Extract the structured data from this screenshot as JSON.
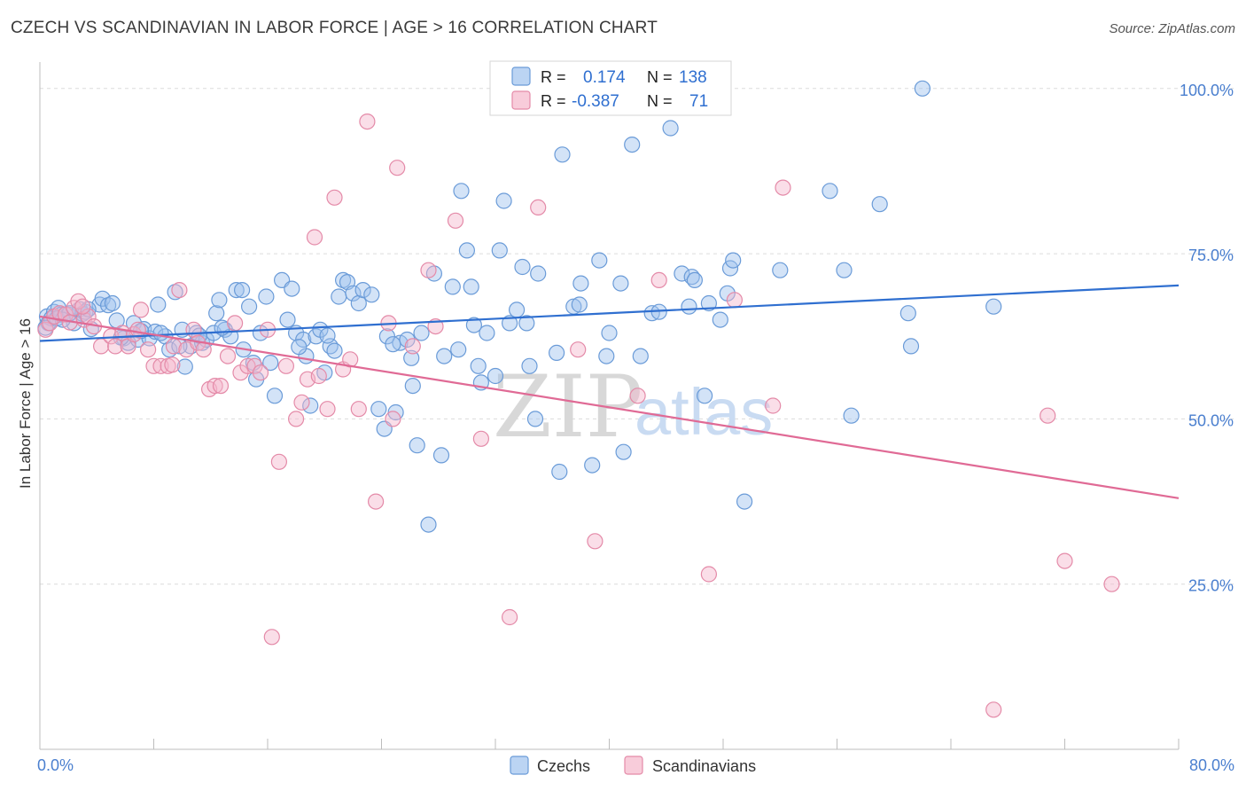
{
  "title": "CZECH VS SCANDINAVIAN IN LABOR FORCE | AGE > 16 CORRELATION CHART",
  "source": "Source: ZipAtlas.com",
  "watermark": {
    "zip": "ZIP",
    "atlas": "atlas"
  },
  "chart_data": {
    "type": "scatter",
    "ylabel": "In Labor Force | Age > 16",
    "xlim": [
      0,
      80
    ],
    "ylim": [
      0,
      104
    ],
    "y_ticks": [
      {
        "value": 25,
        "label": "25.0%"
      },
      {
        "value": 50,
        "label": "50.0%"
      },
      {
        "value": 75,
        "label": "75.0%"
      },
      {
        "value": 100,
        "label": "100.0%"
      }
    ],
    "x_tick_labels": [
      {
        "value": 0,
        "label": "0.0%"
      },
      {
        "value": 80,
        "label": "80.0%"
      }
    ],
    "x_minor_ticks": [
      0,
      8,
      16,
      24,
      32,
      40,
      48,
      56,
      64,
      72,
      80
    ],
    "grid": "horizontal dashed",
    "legend_position": "bottom-center",
    "stats": [
      {
        "r_label": "R =",
        "r": "0.174",
        "n_label": "N =",
        "n": "138"
      },
      {
        "r_label": "R =",
        "r": "-0.387",
        "n_label": "N =",
        "n": "71"
      }
    ],
    "series": [
      {
        "name": "Czechs",
        "color": "#9ec2ee",
        "stroke": "#6a9bd8",
        "trend_color": "#2f6fd0",
        "trend": [
          [
            0,
            61.8
          ],
          [
            80,
            70.2
          ]
        ],
        "points": [
          [
            0.5,
            65.5
          ],
          [
            0.6,
            64.5
          ],
          [
            0.8,
            65.2
          ],
          [
            1.0,
            66.2
          ],
          [
            1.3,
            66.8
          ],
          [
            1.5,
            65.8
          ],
          [
            2.0,
            65.8
          ],
          [
            2.4,
            64.5
          ],
          [
            2.8,
            66.6
          ],
          [
            3.0,
            65.9
          ],
          [
            3.2,
            66.2
          ],
          [
            3.6,
            63.6
          ],
          [
            4.2,
            67.3
          ],
          [
            4.4,
            68.2
          ],
          [
            4.8,
            67.2
          ],
          [
            5.1,
            67.5
          ],
          [
            5.4,
            64.9
          ],
          [
            5.9,
            62.2
          ],
          [
            6.2,
            61.5
          ],
          [
            6.6,
            64.5
          ],
          [
            6.9,
            62.0
          ],
          [
            7.3,
            63.6
          ],
          [
            7.7,
            62.2
          ],
          [
            8.1,
            63.2
          ],
          [
            8.3,
            67.3
          ],
          [
            8.8,
            62.5
          ],
          [
            9.1,
            60.5
          ],
          [
            9.5,
            69.2
          ],
          [
            10.0,
            63.5
          ],
          [
            10.2,
            57.9
          ],
          [
            10.6,
            61.0
          ],
          [
            11.0,
            63.0
          ],
          [
            11.4,
            61.5
          ],
          [
            11.7,
            62.0
          ],
          [
            12.2,
            63.0
          ],
          [
            12.4,
            66.0
          ],
          [
            12.6,
            68.0
          ],
          [
            13.0,
            63.5
          ],
          [
            13.4,
            62.5
          ],
          [
            13.8,
            69.5
          ],
          [
            14.2,
            69.5
          ],
          [
            14.3,
            60.5
          ],
          [
            14.7,
            67.0
          ],
          [
            15.2,
            56.0
          ],
          [
            15.5,
            63.0
          ],
          [
            15.9,
            68.5
          ],
          [
            16.2,
            58.5
          ],
          [
            16.5,
            53.5
          ],
          [
            17.0,
            71.0
          ],
          [
            17.4,
            65.0
          ],
          [
            17.7,
            69.7
          ],
          [
            18.0,
            63.0
          ],
          [
            18.5,
            62.0
          ],
          [
            18.7,
            59.5
          ],
          [
            19.0,
            52.0
          ],
          [
            19.4,
            62.5
          ],
          [
            19.7,
            63.5
          ],
          [
            20.0,
            57.0
          ],
          [
            20.4,
            61.0
          ],
          [
            20.7,
            60.3
          ],
          [
            21.0,
            68.5
          ],
          [
            21.3,
            71.0
          ],
          [
            21.6,
            70.7
          ],
          [
            22.0,
            69.0
          ],
          [
            22.4,
            67.5
          ],
          [
            22.7,
            69.5
          ],
          [
            23.3,
            68.8
          ],
          [
            23.8,
            51.5
          ],
          [
            24.2,
            48.5
          ],
          [
            24.4,
            62.5
          ],
          [
            25.0,
            51.0
          ],
          [
            25.3,
            61.5
          ],
          [
            25.8,
            62.0
          ],
          [
            26.2,
            55.0
          ],
          [
            26.5,
            46.0
          ],
          [
            26.8,
            63.0
          ],
          [
            27.3,
            34.0
          ],
          [
            27.7,
            72.0
          ],
          [
            28.2,
            44.5
          ],
          [
            28.4,
            59.5
          ],
          [
            29.0,
            70.0
          ],
          [
            29.4,
            60.5
          ],
          [
            29.6,
            84.5
          ],
          [
            30.0,
            75.5
          ],
          [
            30.3,
            70.0
          ],
          [
            30.8,
            58.0
          ],
          [
            31.0,
            55.5
          ],
          [
            31.4,
            63.0
          ],
          [
            32.0,
            56.5
          ],
          [
            32.3,
            75.5
          ],
          [
            32.6,
            83.0
          ],
          [
            33.0,
            64.5
          ],
          [
            33.5,
            66.5
          ],
          [
            33.9,
            73.0
          ],
          [
            34.2,
            64.5
          ],
          [
            34.4,
            58.0
          ],
          [
            34.8,
            50.0
          ],
          [
            35.0,
            72.0
          ],
          [
            36.3,
            60.0
          ],
          [
            36.5,
            42.0
          ],
          [
            36.7,
            90.0
          ],
          [
            37.5,
            67.0
          ],
          [
            38.0,
            70.5
          ],
          [
            38.8,
            43.0
          ],
          [
            39.3,
            74.0
          ],
          [
            39.8,
            59.5
          ],
          [
            40.0,
            63.0
          ],
          [
            40.8,
            70.5
          ],
          [
            41.0,
            45.0
          ],
          [
            41.6,
            91.5
          ],
          [
            42.2,
            59.5
          ],
          [
            43.0,
            66.0
          ],
          [
            44.3,
            94.0
          ],
          [
            45.1,
            72.0
          ],
          [
            45.6,
            67.0
          ],
          [
            45.8,
            71.5
          ],
          [
            46.0,
            71.0
          ],
          [
            46.7,
            53.5
          ],
          [
            47.0,
            67.5
          ],
          [
            47.8,
            65.0
          ],
          [
            48.3,
            69.0
          ],
          [
            48.5,
            72.8
          ],
          [
            48.7,
            74.0
          ],
          [
            49.5,
            37.5
          ],
          [
            52.0,
            72.5
          ],
          [
            55.5,
            84.5
          ],
          [
            56.5,
            72.5
          ],
          [
            57.0,
            50.5
          ],
          [
            59.0,
            82.5
          ],
          [
            61.0,
            66.0
          ],
          [
            61.2,
            61.0
          ],
          [
            62.0,
            100.0
          ],
          [
            67.0,
            67.0
          ],
          [
            0.4,
            63.8
          ],
          [
            1.2,
            65.2
          ],
          [
            2.1,
            66.0
          ],
          [
            7.1,
            63.3
          ],
          [
            9.8,
            61.0
          ],
          [
            12.8,
            63.8
          ],
          [
            15.0,
            58.5
          ],
          [
            20.2,
            62.6
          ],
          [
            24.8,
            61.3
          ],
          [
            30.5,
            64.2
          ],
          [
            37.9,
            67.3
          ],
          [
            1.6,
            65.0
          ],
          [
            3.4,
            66.6
          ],
          [
            5.7,
            62.3
          ],
          [
            8.5,
            63.0
          ],
          [
            11.2,
            62.6
          ],
          [
            18.2,
            60.9
          ],
          [
            26.1,
            59.2
          ],
          [
            43.5,
            66.2
          ]
        ]
      },
      {
        "name": "Scandinavians",
        "color": "#f5b6cb",
        "stroke": "#e48aa8",
        "trend_color": "#e06a95",
        "trend": [
          [
            0,
            65.5
          ],
          [
            80,
            38.0
          ]
        ],
        "points": [
          [
            0.4,
            63.5
          ],
          [
            0.7,
            64.5
          ],
          [
            1.0,
            65.5
          ],
          [
            1.4,
            66.0
          ],
          [
            1.8,
            65.8
          ],
          [
            2.1,
            64.6
          ],
          [
            2.4,
            66.8
          ],
          [
            2.7,
            67.8
          ],
          [
            3.1,
            65.0
          ],
          [
            3.4,
            65.5
          ],
          [
            3.8,
            64.0
          ],
          [
            4.3,
            61.0
          ],
          [
            5.0,
            62.5
          ],
          [
            5.3,
            61.0
          ],
          [
            5.8,
            63.0
          ],
          [
            6.2,
            61.0
          ],
          [
            6.6,
            62.8
          ],
          [
            7.1,
            66.5
          ],
          [
            7.6,
            60.5
          ],
          [
            8.0,
            58.0
          ],
          [
            8.5,
            58.0
          ],
          [
            9.0,
            58.0
          ],
          [
            9.4,
            61.0
          ],
          [
            9.8,
            69.5
          ],
          [
            10.3,
            60.5
          ],
          [
            10.8,
            63.5
          ],
          [
            11.1,
            61.5
          ],
          [
            11.5,
            60.5
          ],
          [
            11.9,
            54.5
          ],
          [
            12.3,
            55.0
          ],
          [
            12.7,
            55.0
          ],
          [
            13.2,
            59.5
          ],
          [
            13.7,
            64.5
          ],
          [
            14.1,
            57.0
          ],
          [
            14.6,
            58.0
          ],
          [
            15.1,
            58.0
          ],
          [
            15.5,
            57.0
          ],
          [
            16.0,
            63.5
          ],
          [
            16.3,
            17.0
          ],
          [
            16.8,
            43.5
          ],
          [
            17.3,
            58.0
          ],
          [
            18.0,
            50.0
          ],
          [
            18.4,
            52.5
          ],
          [
            18.8,
            56.0
          ],
          [
            19.3,
            77.5
          ],
          [
            19.6,
            56.5
          ],
          [
            20.2,
            51.5
          ],
          [
            20.7,
            83.5
          ],
          [
            21.3,
            57.5
          ],
          [
            21.8,
            59.0
          ],
          [
            22.4,
            51.5
          ],
          [
            23.0,
            95.0
          ],
          [
            23.6,
            37.5
          ],
          [
            24.5,
            64.5
          ],
          [
            25.1,
            88.0
          ],
          [
            26.2,
            61.0
          ],
          [
            27.3,
            72.5
          ],
          [
            27.8,
            64.0
          ],
          [
            29.2,
            80.0
          ],
          [
            31.0,
            47.0
          ],
          [
            33.0,
            20.0
          ],
          [
            35.0,
            82.0
          ],
          [
            37.8,
            60.5
          ],
          [
            39.0,
            31.5
          ],
          [
            42.0,
            53.5
          ],
          [
            43.5,
            71.0
          ],
          [
            47.0,
            26.5
          ],
          [
            48.8,
            68.0
          ],
          [
            51.5,
            52.0
          ],
          [
            52.2,
            85.0
          ],
          [
            67.0,
            6.0
          ],
          [
            70.8,
            50.5
          ],
          [
            72.0,
            28.5
          ],
          [
            75.3,
            25.0
          ],
          [
            3.0,
            67.0
          ],
          [
            6.9,
            63.5
          ],
          [
            9.3,
            58.2
          ],
          [
            24.8,
            50.0
          ]
        ]
      }
    ]
  }
}
